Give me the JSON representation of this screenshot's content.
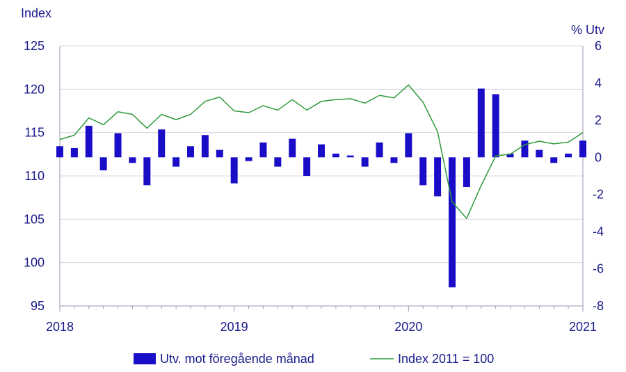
{
  "chart_data": {
    "type": "bar+line",
    "left_axis_title": "Index",
    "right_axis_title": "% Utv",
    "left_ylim": [
      95,
      125
    ],
    "left_ticks": [
      "125",
      "120",
      "115",
      "110",
      "105",
      "100",
      "95"
    ],
    "right_ylim": [
      -8,
      6
    ],
    "right_ticks": [
      "6",
      "4",
      "2",
      "0",
      "-2",
      "-4",
      "-6",
      "-8"
    ],
    "x_tick_labels": [
      "2018",
      "2019",
      "2020",
      "2021"
    ],
    "grid": "horizontal",
    "legend_position": "bottom",
    "colors": {
      "bar": "#1a0dc8",
      "line": "#2e9a3a",
      "text": "#1a1a8c",
      "grid": "#d8d8e0",
      "axis": "#9a9ab0"
    },
    "series": [
      {
        "name": "Utv. mot föregående månad",
        "kind": "bar",
        "axis": "right",
        "values": [
          0.6,
          0.5,
          1.7,
          -0.7,
          1.3,
          -0.3,
          -1.5,
          1.5,
          -0.5,
          0.6,
          1.2,
          0.4,
          -1.4,
          -0.2,
          0.8,
          -0.5,
          1.0,
          -1.0,
          0.7,
          0.2,
          0.1,
          -0.5,
          0.8,
          -0.3,
          1.3,
          -1.5,
          -2.1,
          -7.0,
          -1.6,
          3.7,
          3.4,
          0.2,
          0.9,
          0.4,
          -0.3,
          0.2,
          0.9
        ]
      },
      {
        "name": "Index 2011 = 100",
        "kind": "line",
        "axis": "left",
        "values": [
          114.2,
          114.7,
          116.7,
          115.9,
          117.4,
          117.1,
          115.5,
          117.1,
          116.5,
          117.1,
          118.6,
          119.1,
          117.5,
          117.3,
          118.1,
          117.6,
          118.8,
          117.6,
          118.6,
          118.8,
          118.9,
          118.4,
          119.3,
          119.0,
          120.5,
          118.5,
          115.1,
          107.0,
          105.1,
          108.9,
          112.3,
          112.5,
          113.6,
          114.0,
          113.7,
          113.9,
          115.0
        ]
      }
    ]
  }
}
